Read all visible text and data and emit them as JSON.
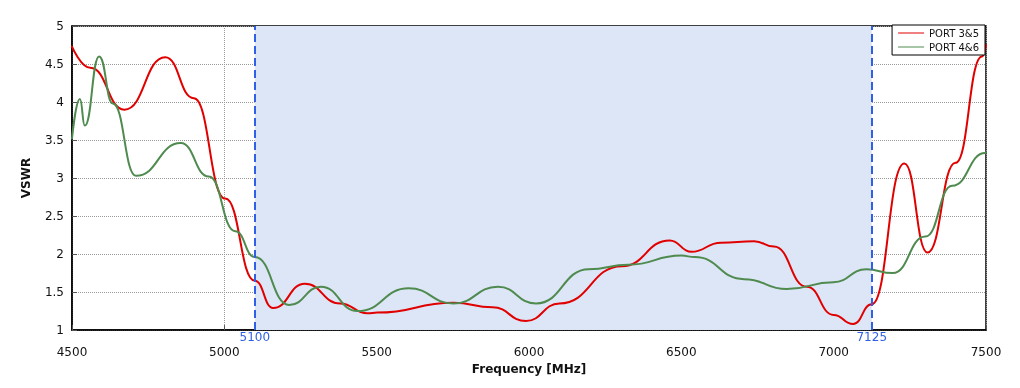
{
  "chart_data": {
    "type": "line",
    "xlabel": "Frequency [MHz]",
    "ylabel": "VSWR",
    "xlim": [
      4500,
      7500
    ],
    "xticks": [
      4500,
      5000,
      5500,
      6000,
      6500,
      7000,
      7500
    ],
    "ylim": [
      1,
      5
    ],
    "yticks": [
      1,
      1.5,
      2,
      2.5,
      3,
      3.5,
      4,
      4.5,
      5
    ],
    "grid": true,
    "legend": "top right",
    "line_style": "solid",
    "series": [
      {
        "name": "PORT 3&5",
        "color": "#e00000",
        "x": [
          4500,
          4560,
          4672,
          4806,
          4900,
          5003,
          5100,
          5160,
          5264,
          5380,
          5470,
          5502,
          5752,
          5880,
          5990,
          6100,
          6305,
          6462,
          6533,
          6630,
          6739,
          6804,
          6912,
          7000,
          7064,
          7125,
          7232,
          7308,
          7400,
          7487,
          7500
        ],
        "values": [
          4.73,
          4.45,
          3.9,
          4.59,
          4.05,
          2.73,
          1.65,
          1.29,
          1.61,
          1.35,
          1.22,
          1.23,
          1.36,
          1.3,
          1.12,
          1.35,
          1.84,
          2.18,
          2.03,
          2.15,
          2.17,
          2.1,
          1.57,
          1.2,
          1.08,
          1.34,
          3.19,
          2.02,
          3.2,
          4.6,
          4.75
        ]
      },
      {
        "name": "PORT 4&6",
        "color": "#4f8a4f",
        "x": [
          4500,
          4526,
          4542,
          4589,
          4634,
          4710,
          4857,
          4949,
          5036,
          5100,
          5213,
          5317,
          5437,
          5605,
          5752,
          5898,
          6023,
          6196,
          6326,
          6500,
          6544,
          6706,
          6846,
          6999,
          7107,
          7194,
          7301,
          7389,
          7497,
          7500
        ],
        "values": [
          3.52,
          4.04,
          3.69,
          4.6,
          3.98,
          3.03,
          3.46,
          3.02,
          2.3,
          1.96,
          1.33,
          1.57,
          1.25,
          1.55,
          1.35,
          1.57,
          1.35,
          1.8,
          1.86,
          1.98,
          1.96,
          1.67,
          1.54,
          1.63,
          1.8,
          1.75,
          2.23,
          2.9,
          3.33,
          3.34
        ]
      }
    ],
    "ref_lines": [
      {
        "axis": "x",
        "value": 5100,
        "label": "5100",
        "color": "#3060e8",
        "line_style": "dashed"
      },
      {
        "axis": "x",
        "value": 7125,
        "label": "7125",
        "color": "#3060e8",
        "line_style": "dashed"
      }
    ],
    "bands": [
      {
        "axis": "x",
        "from": 5100,
        "to": 7125,
        "color": "#dde6f7"
      }
    ]
  }
}
